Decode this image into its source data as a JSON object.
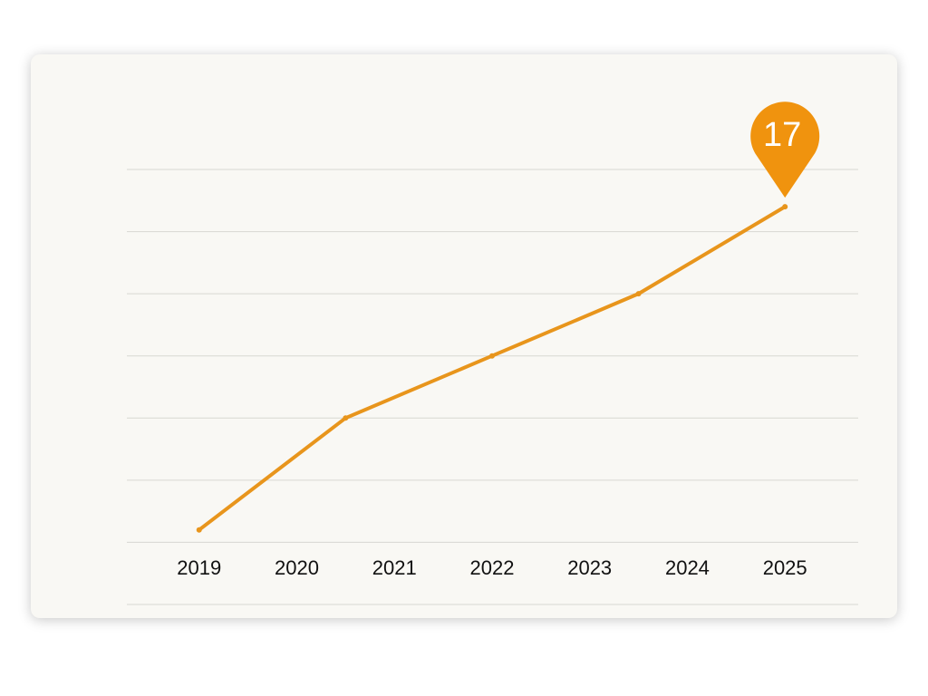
{
  "chart_data": {
    "type": "line",
    "x": [
      2019,
      2020.5,
      2022,
      2023.5,
      2025
    ],
    "values": [
      4,
      8.5,
      11,
      13.5,
      17
    ],
    "color": "#e8951c",
    "xlim": [
      2018.26,
      2025.75
    ],
    "xticks": [
      2019,
      2020,
      2021,
      2022,
      2023,
      2024,
      2025
    ],
    "ylim": [
      1,
      18.5
    ],
    "yticks": [
      1,
      3.5,
      6,
      8.5,
      11,
      13.5,
      16,
      18.5
    ],
    "grid": true
  }
}
